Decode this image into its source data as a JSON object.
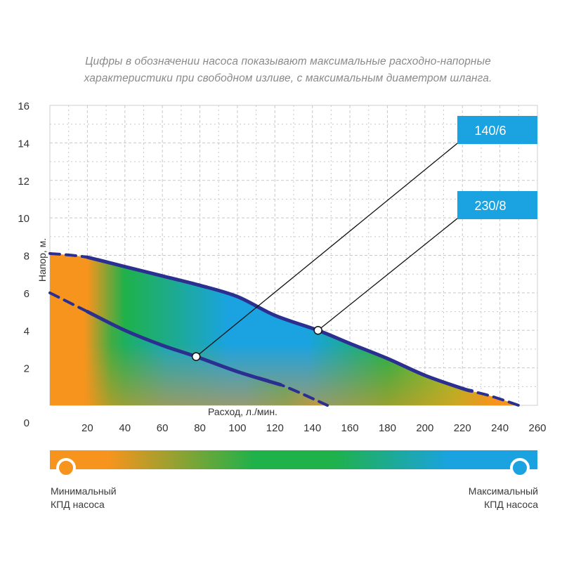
{
  "note": {
    "line1": "Цифры в обозначении насоса показывают максимальные расходно-напорные",
    "line2": "характеристики при свободном изливе, с максимальным диаметром шланга."
  },
  "chart_data": {
    "type": "line",
    "xlabel": "Расход, л./мин.",
    "ylabel": "Напор, м.",
    "xlim": [
      0,
      260
    ],
    "ylim": [
      0,
      16
    ],
    "x_ticks": [
      20,
      40,
      60,
      80,
      100,
      120,
      140,
      160,
      180,
      200,
      220,
      240,
      260
    ],
    "y_ticks": [
      0,
      2,
      4,
      6,
      8,
      10,
      12,
      14,
      16
    ],
    "grid": true,
    "series": [
      {
        "name": "140/6",
        "x": [
          0,
          20,
          40,
          60,
          78,
          100,
          123,
          148
        ],
        "y": [
          6.0,
          5.0,
          4.0,
          3.2,
          2.6,
          1.8,
          1.1,
          0.0
        ],
        "solid_range": [
          20,
          123
        ],
        "marker": {
          "x": 78,
          "y": 2.6
        }
      },
      {
        "name": "230/8",
        "x": [
          0,
          20,
          40,
          60,
          80,
          100,
          120,
          143,
          160,
          180,
          200,
          220,
          235,
          250
        ],
        "y": [
          8.1,
          7.9,
          7.4,
          6.9,
          6.4,
          5.8,
          4.8,
          4.0,
          3.3,
          2.5,
          1.6,
          0.9,
          0.5,
          0.0
        ],
        "solid_range": [
          20,
          225
        ],
        "marker": {
          "x": 143,
          "y": 4.0
        }
      }
    ]
  },
  "legend": {
    "min_line1": "Минимальный",
    "min_line2": "КПД насоса",
    "max_line1": "Максимальный",
    "max_line2": "КПД насоса"
  },
  "colors": {
    "min_efficiency": "#f7941d",
    "mid_efficiency": "#1fb14a",
    "max_efficiency": "#1aa3e0",
    "curve": "#2b2f8f",
    "label_box": "#1aa3e0"
  }
}
